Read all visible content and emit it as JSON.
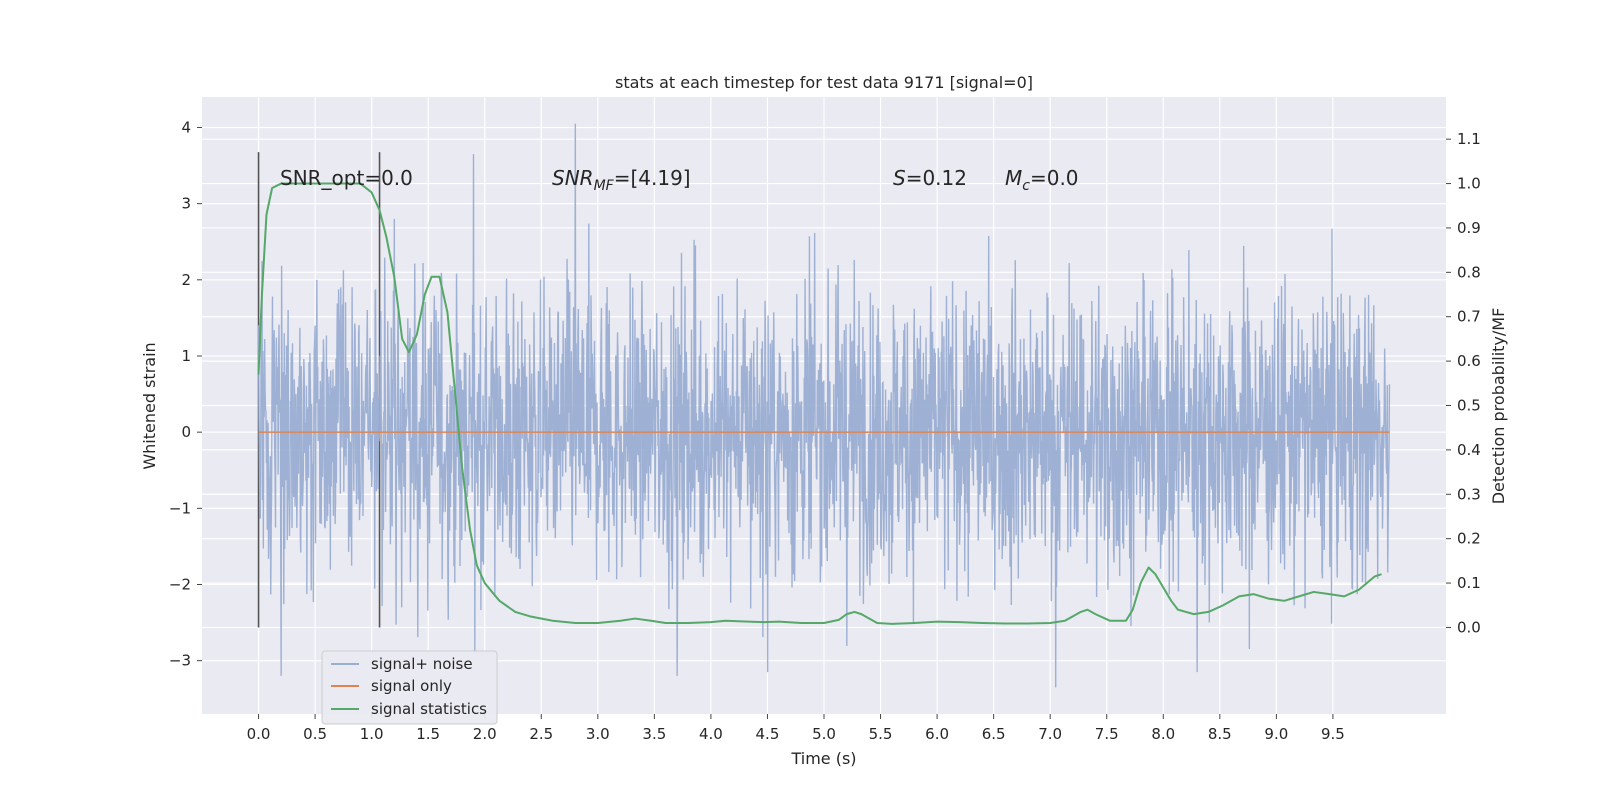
{
  "chart_data": {
    "type": "line",
    "title": "stats at each timestep for test data 9171 [signal=0]",
    "xlabel": "Time (s)",
    "ylabel": "Whitened strain",
    "y2label": "Detection probability/MF",
    "xlim": [
      -0.5,
      10.5
    ],
    "ylim": [
      -3.7,
      4.4
    ],
    "y2lim": [
      -0.195,
      1.195
    ],
    "xticks": [
      "0.0",
      "0.5",
      "1.0",
      "1.5",
      "2.0",
      "2.5",
      "3.0",
      "3.5",
      "4.0",
      "4.5",
      "5.0",
      "5.5",
      "6.0",
      "6.5",
      "7.0",
      "7.5",
      "8.0",
      "8.5",
      "9.0",
      "9.5"
    ],
    "yticks": [
      "−3",
      "−2",
      "−1",
      "0",
      "1",
      "2",
      "3",
      "4"
    ],
    "y2ticks": [
      "0.0",
      "0.1",
      "0.2",
      "0.3",
      "0.4",
      "0.5",
      "0.6",
      "0.7",
      "0.8",
      "0.9",
      "1.0",
      "1.1"
    ],
    "grid": true,
    "legend_position": "lower-left",
    "annotations": {
      "snr_opt": "SNR_opt=0.0",
      "snr_mf_sym": "SNR",
      "snr_mf_sub": "MF",
      "snr_mf_val": "=[4.19]",
      "s_sym": "S",
      "s_val": "=0.12",
      "mc_sym": "M",
      "mc_sub": "c",
      "mc_val": "=0.0"
    },
    "vlines": [
      0.0,
      1.07
    ],
    "series": [
      {
        "name": "signal+ noise",
        "color": "#9aaed2",
        "t_start": 0.0,
        "t_end": 10.0,
        "band_sigma": 1.0,
        "notable_peaks": [
          [
            0.2,
            -3.2
          ],
          [
            1.2,
            2.8
          ],
          [
            1.9,
            3.65
          ],
          [
            2.8,
            4.05
          ],
          [
            3.7,
            -3.2
          ],
          [
            4.5,
            -3.15
          ],
          [
            7.05,
            -3.35
          ],
          [
            8.3,
            -3.15
          ]
        ]
      },
      {
        "name": "signal only",
        "color": "#dd8452",
        "x": [
          0.0,
          10.0
        ],
        "y": [
          0.0,
          0.0
        ]
      },
      {
        "name": "signal statistics",
        "color": "#55a868",
        "axis": "right",
        "x": [
          0.0,
          0.03,
          0.07,
          0.12,
          0.2,
          0.3,
          0.5,
          0.7,
          0.9,
          1.0,
          1.07,
          1.13,
          1.2,
          1.27,
          1.33,
          1.4,
          1.47,
          1.53,
          1.6,
          1.67,
          1.73,
          1.8,
          1.87,
          1.93,
          2.0,
          2.13,
          2.27,
          2.4,
          2.6,
          2.8,
          3.0,
          3.2,
          3.33,
          3.47,
          3.6,
          3.8,
          4.0,
          4.13,
          4.33,
          4.47,
          4.6,
          4.8,
          5.0,
          5.13,
          5.2,
          5.27,
          5.33,
          5.47,
          5.6,
          5.8,
          6.0,
          6.2,
          6.4,
          6.6,
          6.8,
          7.0,
          7.13,
          7.2,
          7.27,
          7.33,
          7.4,
          7.53,
          7.67,
          7.73,
          7.8,
          7.87,
          7.93,
          8.0,
          8.07,
          8.13,
          8.27,
          8.4,
          8.53,
          8.67,
          8.8,
          8.93,
          9.07,
          9.2,
          9.33,
          9.47,
          9.6,
          9.73,
          9.87,
          9.93
        ],
        "y": [
          0.57,
          0.75,
          0.93,
          0.99,
          1.0,
          1.0,
          1.0,
          1.0,
          1.0,
          0.98,
          0.94,
          0.88,
          0.79,
          0.65,
          0.62,
          0.66,
          0.75,
          0.79,
          0.79,
          0.71,
          0.55,
          0.36,
          0.22,
          0.14,
          0.1,
          0.06,
          0.035,
          0.025,
          0.015,
          0.01,
          0.01,
          0.015,
          0.02,
          0.015,
          0.01,
          0.01,
          0.012,
          0.015,
          0.013,
          0.012,
          0.013,
          0.01,
          0.01,
          0.017,
          0.03,
          0.035,
          0.03,
          0.01,
          0.008,
          0.01,
          0.013,
          0.012,
          0.01,
          0.009,
          0.009,
          0.01,
          0.015,
          0.025,
          0.035,
          0.04,
          0.03,
          0.015,
          0.015,
          0.04,
          0.1,
          0.135,
          0.12,
          0.09,
          0.06,
          0.04,
          0.03,
          0.035,
          0.05,
          0.07,
          0.075,
          0.065,
          0.06,
          0.07,
          0.08,
          0.075,
          0.07,
          0.085,
          0.115,
          0.12
        ]
      }
    ]
  }
}
